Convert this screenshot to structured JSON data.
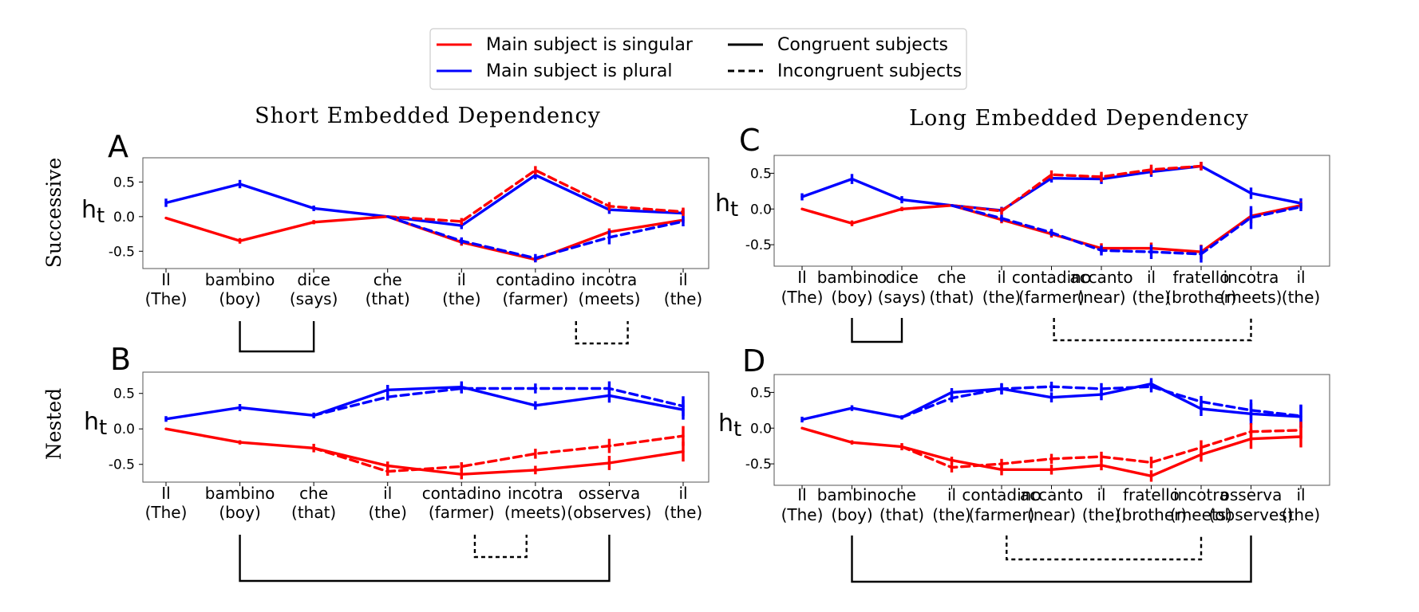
{
  "legend": {
    "entries": [
      {
        "label": "Main subject is singular",
        "color": "#ff0000",
        "dash": "solid"
      },
      {
        "label": "Congruent subjects",
        "color": "#000000",
        "dash": "solid"
      },
      {
        "label": "Main subject is plural",
        "color": "#0000ff",
        "dash": "solid"
      },
      {
        "label": "Incongruent subjects",
        "color": "#000000",
        "dash": "dashed"
      }
    ]
  },
  "column_titles": [
    "Short Embedded Dependency",
    "Long Embedded Dependency"
  ],
  "row_labels": [
    "Successive",
    "Nested"
  ],
  "colors": {
    "singular": "#ff0000",
    "plural": "#0000ff",
    "bracket": "#000000"
  },
  "chart_data": [
    {
      "id": "A",
      "type": "line",
      "panel_letter": "A",
      "ylabel": "h",
      "ylabel_sub": "t",
      "ylim": [
        -0.75,
        0.85
      ],
      "yticks": [
        0.5,
        0.0,
        -0.5
      ],
      "ytick_labels": [
        "0.5",
        "0.0",
        "-0.5"
      ],
      "x_words": [
        "Il",
        "bambino",
        "dice",
        "che",
        "il",
        "contadino",
        "incotra",
        "il"
      ],
      "x_glosses": [
        "(The)",
        "(boy)",
        "(says)",
        "(that)",
        "(the)",
        "(farmer)",
        "(meets)",
        "(the)"
      ],
      "series": [
        {
          "color": "#0000ff",
          "dash": "solid",
          "values": [
            0.2,
            0.47,
            0.12,
            0.0,
            -0.13,
            0.6,
            0.1,
            0.05
          ],
          "err": [
            0.06,
            0.06,
            0.04,
            0,
            0.05,
            0.06,
            0.06,
            0.06
          ]
        },
        {
          "color": "#ff0000",
          "dash": "solid",
          "values": [
            -0.02,
            -0.35,
            -0.08,
            0.0,
            -0.37,
            -0.62,
            -0.22,
            -0.05
          ],
          "err": [
            0,
            0.04,
            0.03,
            0,
            0.05,
            0.04,
            0.05,
            0.04
          ]
        },
        {
          "color": "#ff0000",
          "dash": "dashed",
          "values": [
            null,
            null,
            null,
            0.0,
            -0.07,
            0.67,
            0.15,
            0.07
          ],
          "err": [
            0,
            0,
            0,
            0,
            0.05,
            0.06,
            0.06,
            0.06
          ]
        },
        {
          "color": "#0000ff",
          "dash": "dashed",
          "values": [
            null,
            null,
            null,
            0.0,
            -0.35,
            -0.6,
            -0.3,
            -0.07
          ],
          "err": [
            0,
            0,
            0,
            0,
            0.05,
            0.06,
            0.1,
            0.07
          ]
        }
      ],
      "brackets": [
        {
          "from": 1,
          "to": 2,
          "dash": "solid",
          "depth": 38
        },
        {
          "from": 5.55,
          "to": 6.25,
          "dash": "dashed",
          "depth": 28
        }
      ]
    },
    {
      "id": "B",
      "type": "line",
      "panel_letter": "B",
      "ylabel": "h",
      "ylabel_sub": "t",
      "ylim": [
        -0.75,
        0.8
      ],
      "yticks": [
        0.5,
        0.0,
        -0.5
      ],
      "ytick_labels": [
        "0.5",
        "0.0",
        "-0.5"
      ],
      "x_words": [
        "Il",
        "bambino",
        "che",
        "il",
        "contadino",
        "incotra",
        "osserva",
        "il"
      ],
      "x_glosses": [
        "(The)",
        "(boy)",
        "(that)",
        "(the)",
        "(farmer)",
        "(meets)",
        "(observes)",
        "(the)"
      ],
      "series": [
        {
          "color": "#0000ff",
          "dash": "solid",
          "values": [
            0.14,
            0.3,
            0.19,
            0.55,
            0.59,
            0.33,
            0.47,
            0.27
          ],
          "err": [
            0.04,
            0.05,
            0.04,
            0.07,
            0.08,
            0.06,
            0.1,
            0.14
          ]
        },
        {
          "color": "#ff0000",
          "dash": "solid",
          "values": [
            0.0,
            -0.19,
            -0.27,
            -0.52,
            -0.64,
            -0.58,
            -0.48,
            -0.32
          ],
          "err": [
            0,
            0.03,
            0.06,
            0.06,
            0.07,
            0.06,
            0.1,
            0.14
          ]
        },
        {
          "color": "#0000ff",
          "dash": "dashed",
          "values": [
            null,
            null,
            0.19,
            0.45,
            0.57,
            0.57,
            0.57,
            0.32
          ],
          "err": [
            0,
            0,
            0,
            0.05,
            0.07,
            0.07,
            0.1,
            0.14
          ]
        },
        {
          "color": "#ff0000",
          "dash": "dashed",
          "values": [
            null,
            null,
            -0.27,
            -0.6,
            -0.53,
            -0.35,
            -0.24,
            -0.1
          ],
          "err": [
            0,
            0,
            0,
            0.06,
            0.06,
            0.07,
            0.1,
            0.14
          ]
        }
      ],
      "brackets": [
        {
          "from": 1,
          "to": 6,
          "dash": "solid",
          "depth": 58
        },
        {
          "from": 4.18,
          "to": 4.88,
          "dash": "dashed",
          "depth": 28
        }
      ]
    },
    {
      "id": "C",
      "type": "line",
      "panel_letter": "C",
      "ylabel": "h",
      "ylabel_sub": "t",
      "ylim": [
        -0.8,
        0.75
      ],
      "yticks": [
        0.5,
        0.0,
        -0.5
      ],
      "ytick_labels": [
        "0.5",
        "0.0",
        "-0.5"
      ],
      "x_words": [
        "Il",
        "bambino",
        "dice",
        "che",
        "il",
        "contadino",
        "accanto",
        "il",
        "fratello",
        "incotra",
        "il"
      ],
      "x_glosses": [
        "(The)",
        "(boy)",
        "(says)",
        "(that)",
        "(the)",
        "(farmer)",
        "(near)",
        "(the)",
        "(brother)",
        "(meets)",
        "(the)"
      ],
      "series": [
        {
          "color": "#0000ff",
          "dash": "solid",
          "values": [
            0.17,
            0.42,
            0.13,
            0.05,
            -0.02,
            0.43,
            0.42,
            0.52,
            0.6,
            0.22,
            0.08
          ],
          "err": [
            0.05,
            0.07,
            0.05,
            0,
            0.05,
            0.06,
            0.07,
            0.07,
            0.06,
            0.08,
            0.07
          ]
        },
        {
          "color": "#ff0000",
          "dash": "solid",
          "values": [
            0.0,
            -0.2,
            0.0,
            0.05,
            -0.15,
            -0.35,
            -0.55,
            -0.55,
            -0.6,
            -0.1,
            0.05
          ],
          "err": [
            0,
            0.04,
            0.03,
            0,
            0.05,
            0.05,
            0.07,
            0.08,
            0.1,
            0.1,
            0.05
          ]
        },
        {
          "color": "#ff0000",
          "dash": "dashed",
          "values": [
            null,
            null,
            null,
            0.05,
            -0.03,
            0.48,
            0.45,
            0.55,
            0.6,
            null,
            null
          ],
          "err": [
            0,
            0,
            0,
            0,
            0.05,
            0.06,
            0.07,
            0.07,
            0.06,
            0,
            0
          ]
        },
        {
          "color": "#0000ff",
          "dash": "dashed",
          "values": [
            null,
            null,
            null,
            0.05,
            -0.13,
            -0.33,
            -0.58,
            -0.6,
            -0.63,
            -0.12,
            0.03
          ],
          "err": [
            0,
            0,
            0,
            0,
            0.05,
            0.05,
            0.07,
            0.1,
            0.12,
            0.16,
            0.06
          ]
        }
      ],
      "brackets": [
        {
          "from": 1,
          "to": 2,
          "dash": "solid",
          "depth": 30
        },
        {
          "from": 5.05,
          "to": 9,
          "dash": "dashed",
          "depth": 28
        }
      ]
    },
    {
      "id": "D",
      "type": "line",
      "panel_letter": "D",
      "ylabel": "h",
      "ylabel_sub": "t",
      "ylim": [
        -0.8,
        0.75
      ],
      "yticks": [
        0.5,
        0.0,
        -0.5
      ],
      "ytick_labels": [
        "0.5",
        "0.0",
        "-0.5"
      ],
      "x_words": [
        "Il",
        "bambino",
        "che",
        "il",
        "contadino",
        "accanto",
        "il",
        "fratello",
        "incotra",
        "osserva",
        "il"
      ],
      "x_glosses": [
        "(The)",
        "(boy)",
        "(that)",
        "(the)",
        "(farmer)",
        "(near)",
        "(the)",
        "(brother)",
        "(meets)",
        "(observes)",
        "(the)"
      ],
      "series": [
        {
          "color": "#0000ff",
          "dash": "solid",
          "values": [
            0.12,
            0.28,
            0.15,
            0.5,
            0.55,
            0.43,
            0.47,
            0.62,
            0.27,
            0.2,
            0.16
          ],
          "err": [
            0.04,
            0.04,
            0.03,
            0.06,
            0.07,
            0.07,
            0.08,
            0.08,
            0.1,
            0.15,
            0.16
          ]
        },
        {
          "color": "#ff0000",
          "dash": "solid",
          "values": [
            0.0,
            -0.2,
            -0.26,
            -0.45,
            -0.58,
            -0.58,
            -0.52,
            -0.67,
            -0.37,
            -0.15,
            -0.12
          ],
          "err": [
            0,
            0.03,
            0.05,
            0.05,
            0.08,
            0.07,
            0.07,
            0.08,
            0.1,
            0.14,
            0.15
          ]
        },
        {
          "color": "#0000ff",
          "dash": "dashed",
          "values": [
            null,
            null,
            0.15,
            0.42,
            0.55,
            0.58,
            0.55,
            0.58,
            0.37,
            0.25,
            0.17
          ],
          "err": [
            0,
            0,
            0,
            0.06,
            0.08,
            0.07,
            0.08,
            0.08,
            0.08,
            0.15,
            0.16
          ]
        },
        {
          "color": "#ff0000",
          "dash": "dashed",
          "values": [
            null,
            null,
            -0.26,
            -0.55,
            -0.5,
            -0.43,
            -0.4,
            -0.48,
            -0.27,
            -0.05,
            -0.03
          ],
          "err": [
            0,
            0,
            0,
            0.07,
            0.07,
            0.07,
            0.07,
            0.08,
            0.1,
            0.12,
            0.12
          ]
        }
      ],
      "brackets": [
        {
          "from": 1,
          "to": 9,
          "dash": "solid",
          "depth": 58
        },
        {
          "from": 4.1,
          "to": 8,
          "dash": "dashed",
          "depth": 30
        }
      ]
    }
  ]
}
